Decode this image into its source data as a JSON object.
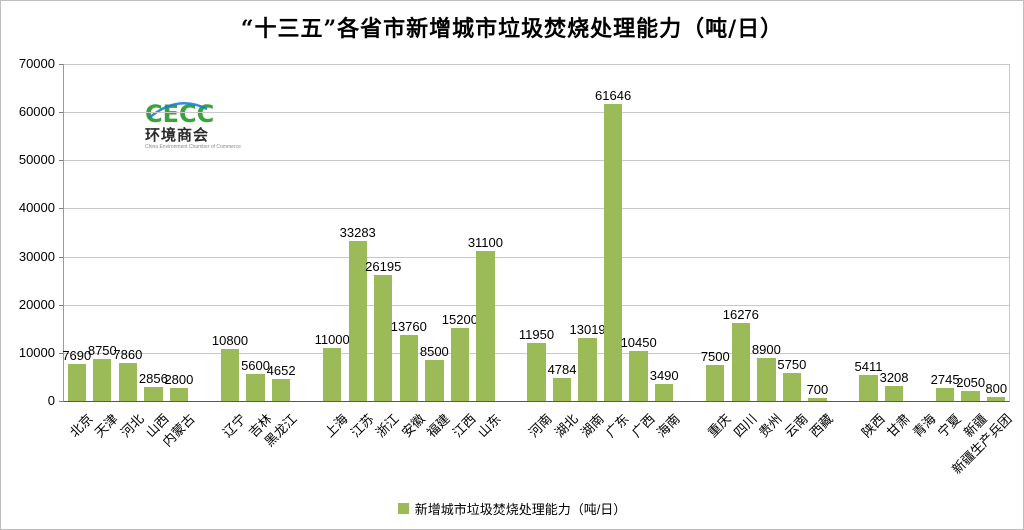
{
  "chart_data": {
    "type": "bar",
    "title": "“十三五”各省市新增城市垃圾焚烧处理能力（吨/日）",
    "series_name": "新增城市垃圾焚烧处理能力（吨/日）",
    "xlabel": "",
    "ylabel": "",
    "ylim": [
      0,
      70000
    ],
    "ytick_interval": 10000,
    "ytick_labels": [
      "0",
      "10000",
      "20000",
      "30000",
      "40000",
      "50000",
      "60000",
      "70000"
    ],
    "bar_color": "#9BBB59",
    "grid_color": "#c9c9c9",
    "legend_position": "bottom",
    "grid": "on",
    "groups": [
      {
        "categories": [
          "北京",
          "天津",
          "河北",
          "山西",
          "内蒙古"
        ],
        "values": [
          7690,
          8750,
          7860,
          2856,
          2800
        ]
      },
      {
        "categories": [
          "辽宁",
          "吉林",
          "黑龙江"
        ],
        "values": [
          10800,
          5600,
          4652
        ]
      },
      {
        "categories": [
          "上海",
          "江苏",
          "浙江",
          "安徽",
          "福建",
          "江西",
          "山东"
        ],
        "values": [
          11000,
          33283,
          26195,
          13760,
          8500,
          15200,
          31100
        ]
      },
      {
        "categories": [
          "河南",
          "湖北",
          "湖南",
          "广东",
          "广西",
          "海南"
        ],
        "values": [
          11950,
          4784,
          13019,
          61646,
          10450,
          3490
        ]
      },
      {
        "categories": [
          "重庆",
          "四川",
          "贵州",
          "云南",
          "西藏"
        ],
        "values": [
          7500,
          16276,
          8900,
          5750,
          700
        ]
      },
      {
        "categories": [
          "陕西",
          "甘肃",
          "青海",
          "宁夏",
          "新疆",
          "新疆生产兵团"
        ],
        "values": [
          5411,
          3208,
          null,
          2745,
          2050,
          800
        ]
      }
    ]
  },
  "logo": {
    "acronym": "CECC",
    "name_cn": "环境商会",
    "name_en": "China Environment Chamber of Commerce"
  }
}
